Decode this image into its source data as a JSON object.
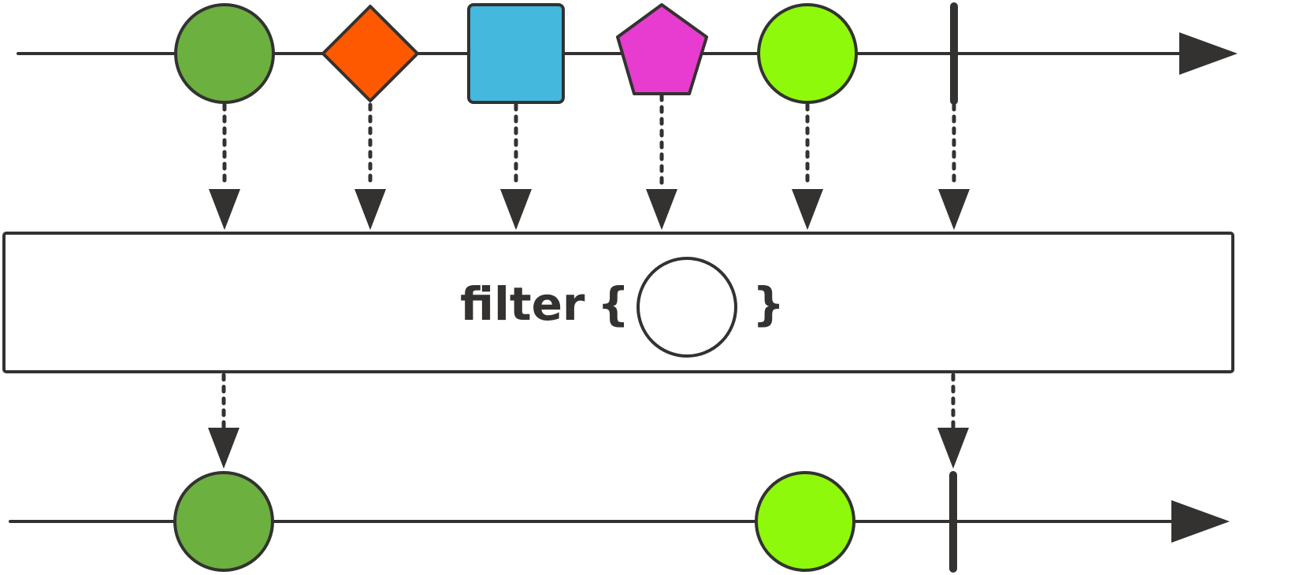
{
  "diagram": {
    "type": "marble-diagram",
    "operator": {
      "label": "filter",
      "open_brace": "{",
      "close_brace": "}",
      "predicate_shape": "circle"
    },
    "colors": {
      "stroke": "#333231",
      "green_dark": "#6cb040",
      "orange": "#ff5900",
      "blue": "#44b8dd",
      "magenta": "#e83bcf",
      "green_bright": "#8ef90a",
      "background": "#ffffff"
    },
    "input_stream": [
      {
        "kind": "circle",
        "color": "green_dark"
      },
      {
        "kind": "diamond",
        "color": "orange"
      },
      {
        "kind": "square",
        "color": "blue"
      },
      {
        "kind": "pentagon",
        "color": "magenta"
      },
      {
        "kind": "circle",
        "color": "green_bright"
      },
      {
        "kind": "completion"
      }
    ],
    "output_stream": [
      {
        "kind": "circle",
        "color": "green_dark"
      },
      {
        "kind": "circle",
        "color": "green_bright"
      },
      {
        "kind": "completion"
      }
    ]
  }
}
